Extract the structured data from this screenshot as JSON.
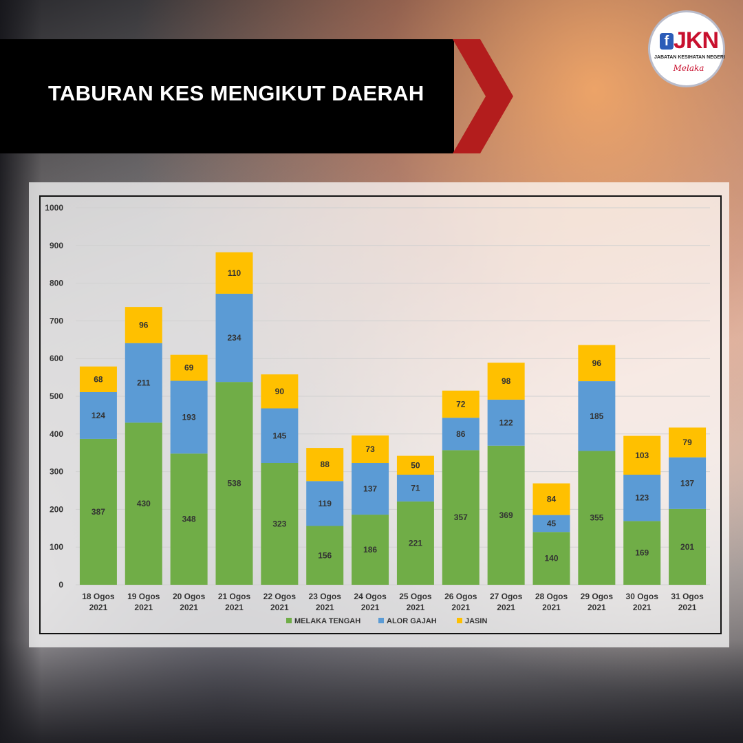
{
  "header": {
    "title": "TABURAN KES MENGIKUT DAERAH"
  },
  "logo": {
    "icon": "facebook-icon",
    "mark": "JKN",
    "subtitle": "JABATAN KESIHATAN NEGERI",
    "script": "Melaka"
  },
  "colors": {
    "banner": "#000000",
    "banner_accent": "#b31d1d",
    "melaka_tengah": "#70ad47",
    "alor_gajah": "#5b9bd5",
    "jasin": "#ffc000"
  },
  "chart_data": {
    "type": "bar",
    "stacked": true,
    "categories": [
      [
        "18 Ogos",
        "2021"
      ],
      [
        "19 Ogos",
        "2021"
      ],
      [
        "20 Ogos",
        "2021"
      ],
      [
        "21 Ogos",
        "2021"
      ],
      [
        "22 Ogos",
        "2021"
      ],
      [
        "23 Ogos",
        "2021"
      ],
      [
        "24 Ogos",
        "2021"
      ],
      [
        "25 Ogos",
        "2021"
      ],
      [
        "26 Ogos",
        "2021"
      ],
      [
        "27 Ogos",
        "2021"
      ],
      [
        "28 Ogos",
        "2021"
      ],
      [
        "29 Ogos",
        "2021"
      ],
      [
        "30 Ogos",
        "2021"
      ],
      [
        "31 Ogos",
        "2021"
      ]
    ],
    "series": [
      {
        "name": "MELAKA TENGAH",
        "color": "#70ad47",
        "values": [
          387,
          430,
          348,
          538,
          323,
          156,
          186,
          221,
          357,
          369,
          140,
          355,
          169,
          201
        ]
      },
      {
        "name": "ALOR GAJAH",
        "color": "#5b9bd5",
        "values": [
          124,
          211,
          193,
          234,
          145,
          119,
          137,
          71,
          86,
          122,
          45,
          185,
          123,
          137
        ]
      },
      {
        "name": "JASIN",
        "color": "#ffc000",
        "values": [
          68,
          96,
          69,
          110,
          90,
          88,
          73,
          50,
          72,
          98,
          84,
          96,
          103,
          79
        ]
      }
    ],
    "ylim": [
      0,
      1000
    ],
    "yticks": [
      0,
      100,
      200,
      300,
      400,
      500,
      600,
      700,
      800,
      900,
      1000
    ],
    "grid": true,
    "legend": "bottom"
  }
}
